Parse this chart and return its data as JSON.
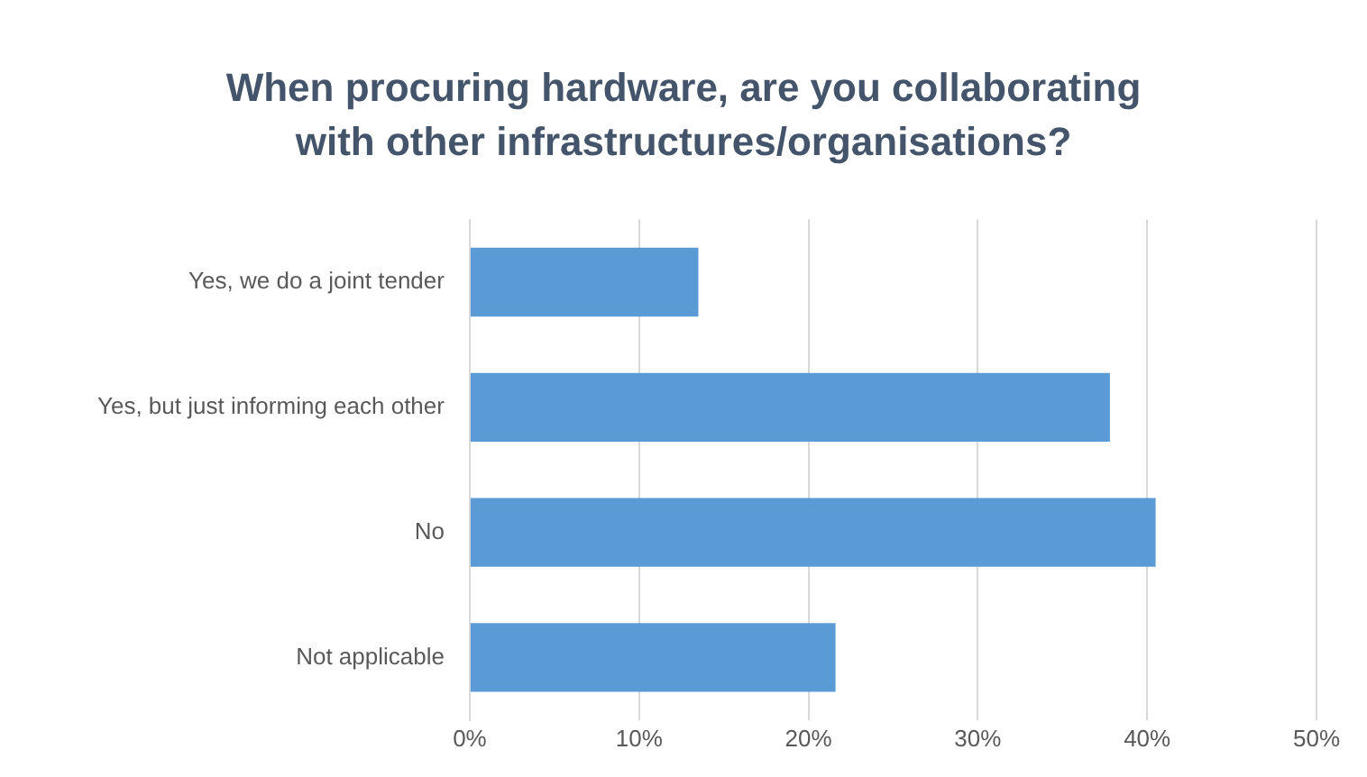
{
  "chart_data": {
    "type": "bar",
    "orientation": "horizontal",
    "title": "When procuring hardware, are you collaborating\nwith other infrastructures/organisations?",
    "categories": [
      "Yes, we do a joint tender",
      "Yes, but just informing each other",
      "No",
      "Not applicable"
    ],
    "values": [
      13.5,
      37.8,
      40.5,
      21.6
    ],
    "color": "#5b9bd5",
    "xlim": [
      0,
      50
    ],
    "xticks": [
      {
        "value": 0,
        "label": "0%"
      },
      {
        "value": 10,
        "label": "10%"
      },
      {
        "value": 20,
        "label": "20%"
      },
      {
        "value": 30,
        "label": "30%"
      },
      {
        "value": 40,
        "label": "40%"
      },
      {
        "value": 50,
        "label": "50%"
      }
    ],
    "grid": "x",
    "legend": false
  }
}
